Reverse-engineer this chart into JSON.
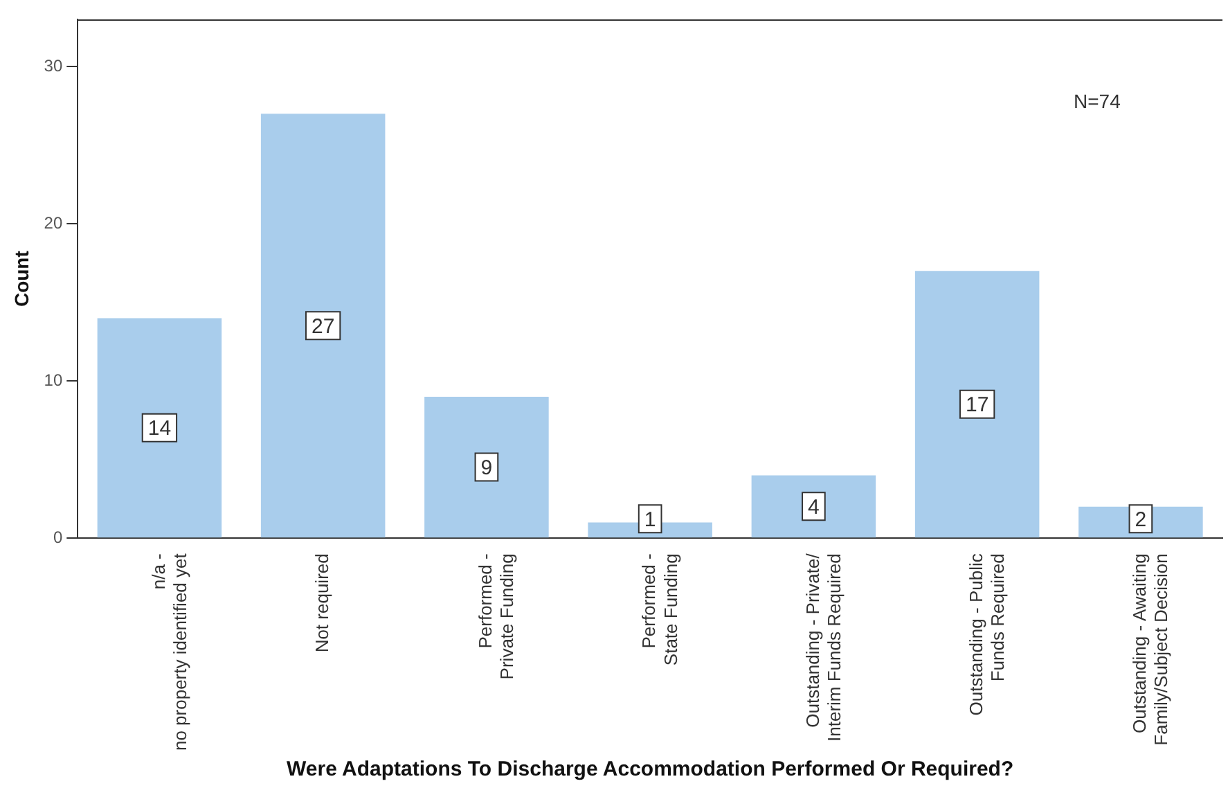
{
  "chart_data": {
    "type": "bar",
    "xlabel": "Were Adaptations To Discharge Accommodation Performed Or Required?",
    "ylabel": "Count",
    "categories": [
      "n/a -\nno property identified yet",
      "Not required",
      "Performed -\nPrivate Funding",
      "Performed -\nState Funding",
      "Outstanding - Private/\nInterim Funds Required",
      "Outstanding - Public\nFunds Required",
      "Outstanding - Awaiting\nFamily/Subject Decision"
    ],
    "values": [
      14,
      27,
      9,
      1,
      4,
      17,
      2
    ],
    "color": "#a9cdec",
    "ylim": [
      0,
      33
    ],
    "yticks": [
      0,
      10,
      20,
      30
    ],
    "grid": false,
    "legend": false,
    "data_labels": true,
    "annotations": [
      "N=74"
    ]
  }
}
